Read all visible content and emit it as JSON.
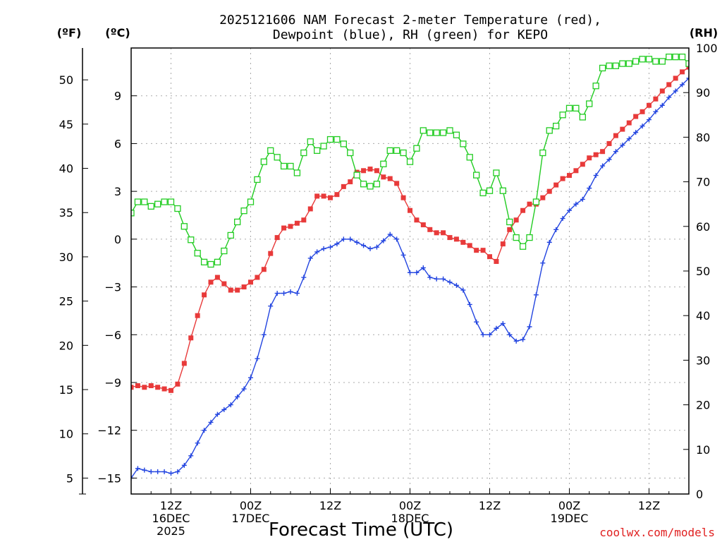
{
  "chart_data": {
    "type": "line",
    "title_line1": "2025121606 NAM Forecast 2-meter Temperature (red),",
    "title_line2": "Dewpoint (blue), RH (green) for KEPO",
    "unit_f": "(ºF)",
    "unit_c": "(ºC)",
    "unit_rh": "(RH)",
    "xlabel": "Forecast Time (UTC)",
    "credit": "coolwx.com/models",
    "x_unit": "forecast hour",
    "xlim": [
      0,
      84
    ],
    "ylim_c": [
      -16,
      12
    ],
    "ylim_rh": [
      0,
      100
    ],
    "grid": true,
    "x_ticks": [
      {
        "x": 6,
        "lines": [
          "12Z",
          "16DEC",
          "2025"
        ]
      },
      {
        "x": 18,
        "lines": [
          "00Z",
          "17DEC"
        ]
      },
      {
        "x": 30,
        "lines": [
          "12Z"
        ]
      },
      {
        "x": 42,
        "lines": [
          "00Z",
          "18DEC"
        ]
      },
      {
        "x": 54,
        "lines": [
          "12Z"
        ]
      },
      {
        "x": 66,
        "lines": [
          "00Z",
          "19DEC"
        ]
      },
      {
        "x": 78,
        "lines": [
          "12Z"
        ]
      }
    ],
    "c_ticks": [
      {
        "v": 9,
        "label": "9"
      },
      {
        "v": 6,
        "label": "6"
      },
      {
        "v": 3,
        "label": "3"
      },
      {
        "v": 0,
        "label": "0"
      },
      {
        "v": -3,
        "label": "−3"
      },
      {
        "v": -6,
        "label": "−6"
      },
      {
        "v": -9,
        "label": "−9"
      },
      {
        "v": -12,
        "label": "−12"
      },
      {
        "v": -15,
        "label": "−15"
      }
    ],
    "f_ticks": [
      {
        "v": 50,
        "label": "50"
      },
      {
        "v": 45,
        "label": "45"
      },
      {
        "v": 40,
        "label": "40"
      },
      {
        "v": 35,
        "label": "35"
      },
      {
        "v": 30,
        "label": "30"
      },
      {
        "v": 25,
        "label": "25"
      },
      {
        "v": 20,
        "label": "20"
      },
      {
        "v": 15,
        "label": "15"
      },
      {
        "v": 10,
        "label": "10"
      },
      {
        "v": 5,
        "label": "5"
      }
    ],
    "rh_ticks": [
      {
        "v": 100,
        "label": "100"
      },
      {
        "v": 90,
        "label": "90"
      },
      {
        "v": 80,
        "label": "80"
      },
      {
        "v": 70,
        "label": "70"
      },
      {
        "v": 60,
        "label": "60"
      },
      {
        "v": 50,
        "label": "50"
      },
      {
        "v": 40,
        "label": "40"
      },
      {
        "v": 30,
        "label": "30"
      },
      {
        "v": 20,
        "label": "20"
      },
      {
        "v": 10,
        "label": "10"
      },
      {
        "v": 0,
        "label": "0"
      }
    ],
    "series": [
      {
        "key": "temperature",
        "color": "#e83a3a",
        "marker": "filled-square",
        "axis": "C",
        "points": [
          [
            0,
            -9.3
          ],
          [
            1,
            -9.2
          ],
          [
            2,
            -9.3
          ],
          [
            3,
            -9.2
          ],
          [
            4,
            -9.3
          ],
          [
            5,
            -9.4
          ],
          [
            6,
            -9.5
          ],
          [
            7,
            -9.1
          ],
          [
            8,
            -7.8
          ],
          [
            9,
            -6.2
          ],
          [
            10,
            -4.8
          ],
          [
            11,
            -3.5
          ],
          [
            12,
            -2.7
          ],
          [
            13,
            -2.4
          ],
          [
            14,
            -2.8
          ],
          [
            15,
            -3.2
          ],
          [
            16,
            -3.2
          ],
          [
            17,
            -3.0
          ],
          [
            18,
            -2.7
          ],
          [
            19,
            -2.4
          ],
          [
            20,
            -1.9
          ],
          [
            21,
            -0.9
          ],
          [
            22,
            0.1
          ],
          [
            23,
            0.7
          ],
          [
            24,
            0.8
          ],
          [
            25,
            1.0
          ],
          [
            26,
            1.2
          ],
          [
            27,
            1.9
          ],
          [
            28,
            2.7
          ],
          [
            29,
            2.7
          ],
          [
            30,
            2.6
          ],
          [
            31,
            2.8
          ],
          [
            32,
            3.3
          ],
          [
            33,
            3.6
          ],
          [
            34,
            4.2
          ],
          [
            35,
            4.3
          ],
          [
            36,
            4.4
          ],
          [
            37,
            4.3
          ],
          [
            38,
            3.9
          ],
          [
            39,
            3.8
          ],
          [
            40,
            3.5
          ],
          [
            41,
            2.6
          ],
          [
            42,
            1.8
          ],
          [
            43,
            1.2
          ],
          [
            44,
            0.9
          ],
          [
            45,
            0.6
          ],
          [
            46,
            0.4
          ],
          [
            47,
            0.4
          ],
          [
            48,
            0.1
          ],
          [
            49,
            0.0
          ],
          [
            50,
            -0.2
          ],
          [
            51,
            -0.4
          ],
          [
            52,
            -0.7
          ],
          [
            53,
            -0.7
          ],
          [
            54,
            -1.1
          ],
          [
            55,
            -1.4
          ],
          [
            56,
            -0.3
          ],
          [
            57,
            0.6
          ],
          [
            58,
            1.2
          ],
          [
            59,
            1.8
          ],
          [
            60,
            2.2
          ],
          [
            61,
            2.2
          ],
          [
            62,
            2.6
          ],
          [
            63,
            3.0
          ],
          [
            64,
            3.4
          ],
          [
            65,
            3.8
          ],
          [
            66,
            4.0
          ],
          [
            67,
            4.3
          ],
          [
            68,
            4.7
          ],
          [
            69,
            5.1
          ],
          [
            70,
            5.3
          ],
          [
            71,
            5.5
          ],
          [
            72,
            6.0
          ],
          [
            73,
            6.5
          ],
          [
            74,
            6.9
          ],
          [
            75,
            7.3
          ],
          [
            76,
            7.7
          ],
          [
            77,
            8.0
          ],
          [
            78,
            8.4
          ],
          [
            79,
            8.8
          ],
          [
            80,
            9.3
          ],
          [
            81,
            9.7
          ],
          [
            82,
            10.1
          ],
          [
            83,
            10.5
          ],
          [
            84,
            10.8
          ]
        ]
      },
      {
        "key": "dewpoint",
        "color": "#2244e0",
        "marker": "plus",
        "axis": "C",
        "points": [
          [
            0,
            -15.0
          ],
          [
            1,
            -14.4
          ],
          [
            2,
            -14.5
          ],
          [
            3,
            -14.6
          ],
          [
            4,
            -14.6
          ],
          [
            5,
            -14.6
          ],
          [
            6,
            -14.7
          ],
          [
            7,
            -14.6
          ],
          [
            8,
            -14.2
          ],
          [
            9,
            -13.6
          ],
          [
            10,
            -12.8
          ],
          [
            11,
            -12.0
          ],
          [
            12,
            -11.5
          ],
          [
            13,
            -11.0
          ],
          [
            14,
            -10.7
          ],
          [
            15,
            -10.4
          ],
          [
            16,
            -9.9
          ],
          [
            17,
            -9.4
          ],
          [
            18,
            -8.7
          ],
          [
            19,
            -7.5
          ],
          [
            20,
            -6.0
          ],
          [
            21,
            -4.2
          ],
          [
            22,
            -3.4
          ],
          [
            23,
            -3.4
          ],
          [
            24,
            -3.3
          ],
          [
            25,
            -3.4
          ],
          [
            26,
            -2.4
          ],
          [
            27,
            -1.2
          ],
          [
            28,
            -0.8
          ],
          [
            29,
            -0.6
          ],
          [
            30,
            -0.5
          ],
          [
            31,
            -0.3
          ],
          [
            32,
            0.0
          ],
          [
            33,
            0.0
          ],
          [
            34,
            -0.2
          ],
          [
            35,
            -0.4
          ],
          [
            36,
            -0.6
          ],
          [
            37,
            -0.5
          ],
          [
            38,
            -0.1
          ],
          [
            39,
            0.3
          ],
          [
            40,
            0.0
          ],
          [
            41,
            -1.0
          ],
          [
            42,
            -2.1
          ],
          [
            43,
            -2.1
          ],
          [
            44,
            -1.8
          ],
          [
            45,
            -2.4
          ],
          [
            46,
            -2.5
          ],
          [
            47,
            -2.5
          ],
          [
            48,
            -2.7
          ],
          [
            49,
            -2.9
          ],
          [
            50,
            -3.2
          ],
          [
            51,
            -4.1
          ],
          [
            52,
            -5.2
          ],
          [
            53,
            -6.0
          ],
          [
            54,
            -6.0
          ],
          [
            55,
            -5.6
          ],
          [
            56,
            -5.3
          ],
          [
            57,
            -6.0
          ],
          [
            58,
            -6.4
          ],
          [
            59,
            -6.3
          ],
          [
            60,
            -5.5
          ],
          [
            61,
            -3.5
          ],
          [
            62,
            -1.5
          ],
          [
            63,
            -0.2
          ],
          [
            64,
            0.6
          ],
          [
            65,
            1.3
          ],
          [
            66,
            1.8
          ],
          [
            67,
            2.2
          ],
          [
            68,
            2.5
          ],
          [
            69,
            3.2
          ],
          [
            70,
            4.0
          ],
          [
            71,
            4.6
          ],
          [
            72,
            5.0
          ],
          [
            73,
            5.5
          ],
          [
            74,
            5.9
          ],
          [
            75,
            6.3
          ],
          [
            76,
            6.7
          ],
          [
            77,
            7.1
          ],
          [
            78,
            7.5
          ],
          [
            79,
            8.0
          ],
          [
            80,
            8.4
          ],
          [
            81,
            8.9
          ],
          [
            82,
            9.3
          ],
          [
            83,
            9.7
          ],
          [
            84,
            10.1
          ]
        ]
      },
      {
        "key": "relative_humidity",
        "color": "#22cc22",
        "marker": "open-square",
        "axis": "RH",
        "points": [
          [
            0,
            63
          ],
          [
            1,
            65.5
          ],
          [
            2,
            65.5
          ],
          [
            3,
            64.5
          ],
          [
            4,
            65
          ],
          [
            5,
            65.5
          ],
          [
            6,
            65.5
          ],
          [
            7,
            64
          ],
          [
            8,
            60
          ],
          [
            9,
            57
          ],
          [
            10,
            54
          ],
          [
            11,
            52
          ],
          [
            12,
            51.5
          ],
          [
            13,
            52
          ],
          [
            14,
            54.5
          ],
          [
            15,
            58
          ],
          [
            16,
            61
          ],
          [
            17,
            63.5
          ],
          [
            18,
            65.5
          ],
          [
            19,
            70.5
          ],
          [
            20,
            74.5
          ],
          [
            21,
            77
          ],
          [
            22,
            75.5
          ],
          [
            23,
            73.5
          ],
          [
            24,
            73.5
          ],
          [
            25,
            72
          ],
          [
            26,
            76.5
          ],
          [
            27,
            79
          ],
          [
            28,
            77
          ],
          [
            29,
            78
          ],
          [
            30,
            79.5
          ],
          [
            31,
            79.5
          ],
          [
            32,
            78.5
          ],
          [
            33,
            76.5
          ],
          [
            34,
            71.5
          ],
          [
            35,
            69.5
          ],
          [
            36,
            69
          ],
          [
            37,
            69.5
          ],
          [
            38,
            74
          ],
          [
            39,
            77
          ],
          [
            40,
            77
          ],
          [
            41,
            76.5
          ],
          [
            42,
            74.5
          ],
          [
            43,
            77.5
          ],
          [
            44,
            81.5
          ],
          [
            45,
            81
          ],
          [
            46,
            81
          ],
          [
            47,
            81
          ],
          [
            48,
            81.5
          ],
          [
            49,
            80.5
          ],
          [
            50,
            78.5
          ],
          [
            51,
            75.5
          ],
          [
            52,
            71.5
          ],
          [
            53,
            67.5
          ],
          [
            54,
            68
          ],
          [
            55,
            72
          ],
          [
            56,
            68
          ],
          [
            57,
            61
          ],
          [
            58,
            57.5
          ],
          [
            59,
            55.5
          ],
          [
            60,
            57.5
          ],
          [
            61,
            65.5
          ],
          [
            62,
            76.5
          ],
          [
            63,
            81.5
          ],
          [
            64,
            82.5
          ],
          [
            65,
            85
          ],
          [
            66,
            86.5
          ],
          [
            67,
            86.5
          ],
          [
            68,
            84.5
          ],
          [
            69,
            87.5
          ],
          [
            70,
            91.5
          ],
          [
            71,
            95.5
          ],
          [
            72,
            96
          ],
          [
            73,
            96
          ],
          [
            74,
            96.5
          ],
          [
            75,
            96.5
          ],
          [
            76,
            97
          ],
          [
            77,
            97.5
          ],
          [
            78,
            97.5
          ],
          [
            79,
            97
          ],
          [
            80,
            97
          ],
          [
            81,
            98
          ],
          [
            82,
            98
          ],
          [
            83,
            98
          ],
          [
            84,
            96.5
          ]
        ]
      }
    ]
  }
}
